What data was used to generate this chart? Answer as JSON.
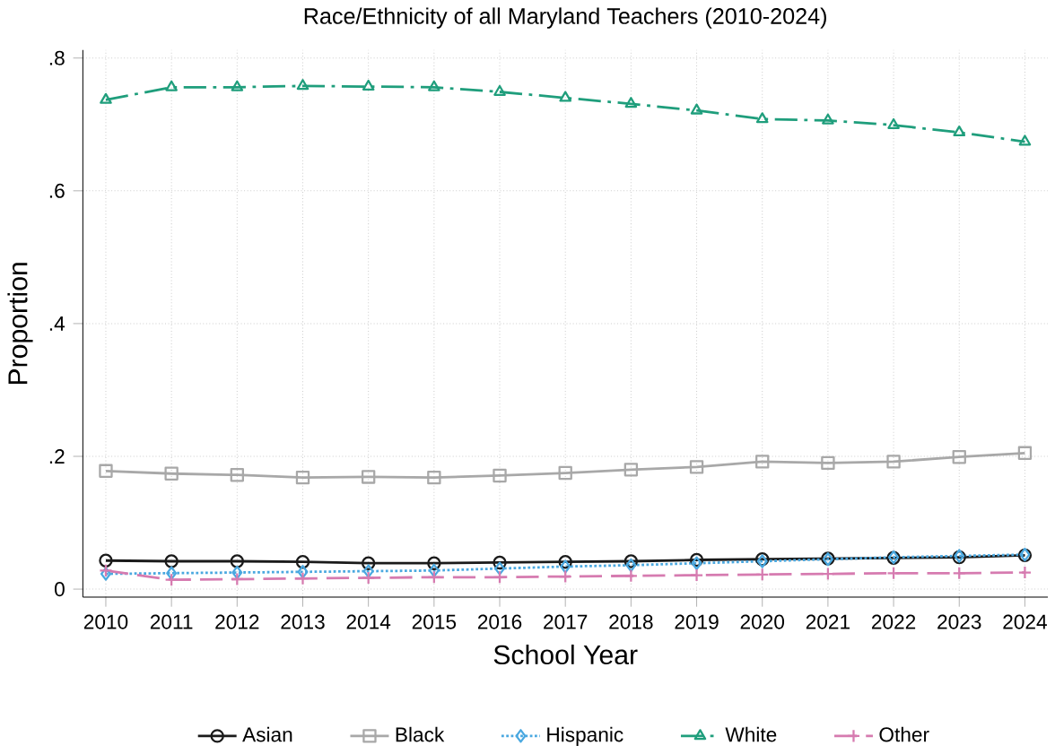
{
  "chart_data": {
    "type": "line",
    "title": "Race/Ethnicity of all Maryland Teachers (2010-2024)",
    "xlabel": "School Year",
    "ylabel": "Proportion",
    "x": [
      2010,
      2011,
      2012,
      2013,
      2014,
      2015,
      2016,
      2017,
      2018,
      2019,
      2020,
      2021,
      2022,
      2023,
      2024
    ],
    "xlim": [
      2010,
      2024
    ],
    "xticks": [
      2010,
      2011,
      2012,
      2013,
      2014,
      2015,
      2016,
      2017,
      2018,
      2019,
      2020,
      2021,
      2022,
      2023,
      2024
    ],
    "ylim": [
      0,
      0.8
    ],
    "yticks": [
      {
        "value": 0,
        "label": "0"
      },
      {
        "value": 0.2,
        "label": ".2"
      },
      {
        "value": 0.4,
        "label": ".4"
      },
      {
        "value": 0.6,
        "label": ".6"
      },
      {
        "value": 0.8,
        "label": ".8"
      }
    ],
    "grid": true,
    "legend": "bottom",
    "series": [
      {
        "name": "Asian",
        "color": "#1a1a1a",
        "marker": "circle",
        "line_style": "solid",
        "values": [
          0.043,
          0.042,
          0.042,
          0.041,
          0.039,
          0.039,
          0.04,
          0.041,
          0.042,
          0.044,
          0.045,
          0.046,
          0.047,
          0.048,
          0.051
        ]
      },
      {
        "name": "Black",
        "color": "#a8a8a8",
        "marker": "square",
        "line_style": "solid",
        "values": [
          0.178,
          0.174,
          0.172,
          0.168,
          0.169,
          0.168,
          0.171,
          0.175,
          0.18,
          0.184,
          0.192,
          0.19,
          0.192,
          0.199,
          0.205
        ]
      },
      {
        "name": "Hispanic",
        "color": "#4aa8e0",
        "marker": "diamond",
        "line_style": "dotted",
        "values": [
          0.023,
          0.024,
          0.025,
          0.026,
          0.027,
          0.028,
          0.031,
          0.034,
          0.036,
          0.039,
          0.042,
          0.045,
          0.048,
          0.05,
          0.052
        ]
      },
      {
        "name": "White",
        "color": "#1f9e7c",
        "marker": "triangle",
        "line_style": "dashdot",
        "values": [
          0.737,
          0.756,
          0.756,
          0.758,
          0.757,
          0.756,
          0.749,
          0.74,
          0.731,
          0.721,
          0.708,
          0.706,
          0.699,
          0.688,
          0.674
        ]
      },
      {
        "name": "Other",
        "color": "#d67bb0",
        "marker": "cross",
        "line_style": "dashed",
        "values": [
          0.028,
          0.014,
          0.015,
          0.016,
          0.017,
          0.018,
          0.018,
          0.019,
          0.02,
          0.021,
          0.022,
          0.023,
          0.024,
          0.024,
          0.025
        ]
      }
    ]
  }
}
